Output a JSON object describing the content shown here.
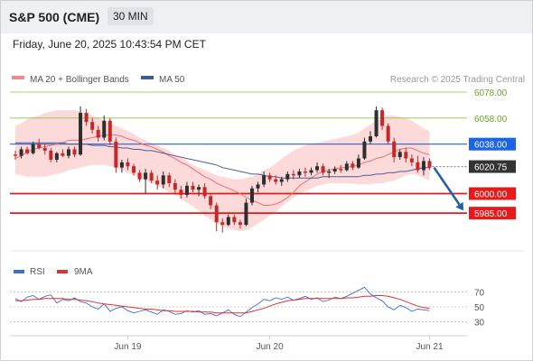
{
  "header": {
    "title": "S&P 500 (CME)",
    "interval": "30 MIN",
    "datetime": "Friday, June 20, 2025 10:43:54 PM CET"
  },
  "legend": {
    "ma20_bb": "MA 20 + Bollinger Bands",
    "ma50": "MA 50",
    "credit": "Research © 2025 Trading Central",
    "rsi": "RSI",
    "ma9": "9MA"
  },
  "colors": {
    "up": "#2e2e2e",
    "down": "#c62828",
    "bollinger_fill": "#fbd3d3",
    "ma20": "#e57373",
    "ma50": "#4a5f9a",
    "green_level": "#8bc34a",
    "blue_level": "#1a64e8",
    "red_level": "#e8191a",
    "price_tag": "#333333",
    "arrow": "#1f5ea8",
    "rsi_line": "#3a6fd0",
    "rsi_ma": "#e23030"
  },
  "chart_data": [
    {
      "type": "candlestick",
      "title": "S&P 500 (CME) 30 MIN",
      "x_axis_labels": [
        "Jun 19",
        "Jun 20",
        "Jun 21"
      ],
      "ylim": [
        5965,
        6087
      ],
      "last_price": 6020.75,
      "price_tag": "6020.75",
      "levels": [
        {
          "value": 6078.0,
          "label": "6078.00",
          "style": "green-line"
        },
        {
          "value": 6058.0,
          "label": "6058.00",
          "style": "green-line"
        },
        {
          "value": 6038.0,
          "label": "6038.00",
          "style": "blue-tag"
        },
        {
          "value": 6000.0,
          "label": "6000.00",
          "style": "red-tag"
        },
        {
          "value": 5985.0,
          "label": "5985.00",
          "style": "red-tag"
        }
      ],
      "projection": {
        "from": 6020,
        "to": 5987
      },
      "series": [
        {
          "name": "MA 20",
          "values": [
            6027,
            6029,
            6032,
            6034,
            6035,
            6036,
            6037,
            6038,
            6039,
            6041,
            6041,
            6041,
            6042,
            6043,
            6044,
            6045,
            6045,
            6045,
            6044,
            6042,
            6041,
            6039,
            6037,
            6036,
            6034,
            6032,
            6029,
            6027,
            6024,
            6022,
            6019,
            6016,
            6013,
            6011,
            6008,
            6006,
            6004,
            6002,
            6000,
            5997,
            5995,
            5993,
            5991,
            5991,
            5992,
            5994,
            5997,
            6001,
            6006,
            6009,
            6012,
            6015,
            6017,
            6018,
            6019,
            6020,
            6020,
            6021,
            6022,
            6024,
            6025,
            6027,
            6028,
            6030,
            6032,
            6034,
            6035,
            6035,
            6033,
            6031,
            6030
          ]
        },
        {
          "name": "MA 50",
          "values": [
            6039,
            6039,
            6039,
            6039,
            6039,
            6039,
            6039,
            6039,
            6039,
            6038,
            6038,
            6038,
            6038,
            6037,
            6037,
            6037,
            6036,
            6036,
            6035,
            6035,
            6034,
            6034,
            6033,
            6033,
            6032,
            6031,
            6030,
            6029,
            6028,
            6027,
            6026,
            6025,
            6024,
            6023,
            6022,
            6020,
            6019,
            6018,
            6017,
            6016,
            6015,
            6015,
            6014,
            6013,
            6013,
            6012,
            6012,
            6012,
            6012,
            6012,
            6012,
            6012,
            6013,
            6013,
            6013,
            6013,
            6013,
            6013,
            6013,
            6014,
            6014,
            6015,
            6015,
            6016,
            6016,
            6017,
            6017,
            6018,
            6019,
            6020,
            6020
          ]
        },
        {
          "name": "Bollinger Upper",
          "values": [
            6052,
            6054,
            6057,
            6059,
            6060,
            6062,
            6063,
            6064,
            6064,
            6064,
            6064,
            6063,
            6061,
            6060,
            6058,
            6056,
            6054,
            6052,
            6050,
            6048,
            6046,
            6043,
            6041,
            6039,
            6037,
            6035,
            6033,
            6030,
            6028,
            6025,
            6022,
            6020,
            6018,
            6016,
            6014,
            6013,
            6012,
            6011,
            6011,
            6012,
            6013,
            6015,
            6018,
            6020,
            6023,
            6027,
            6030,
            6033,
            6035,
            6037,
            6038,
            6039,
            6040,
            6041,
            6042,
            6043,
            6044,
            6045,
            6047,
            6050,
            6053,
            6056,
            6058,
            6060,
            6060,
            6059,
            6058,
            6056,
            6053,
            6050,
            6048
          ]
        },
        {
          "name": "Bollinger Lower",
          "values": [
            6015,
            6014,
            6013,
            6013,
            6013,
            6013,
            6014,
            6015,
            6016,
            6018,
            6019,
            6020,
            6021,
            6022,
            6022,
            6022,
            6021,
            6020,
            6018,
            6016,
            6014,
            6012,
            6010,
            6008,
            6006,
            6004,
            6001,
            5999,
            5996,
            5993,
            5990,
            5987,
            5983,
            5980,
            5977,
            5975,
            5973,
            5972,
            5971,
            5972,
            5974,
            5977,
            5980,
            5983,
            5986,
            5990,
            5994,
            5997,
            6000,
            6002,
            6004,
            6006,
            6007,
            6008,
            6008,
            6008,
            6008,
            6008,
            6007,
            6007,
            6007,
            6008,
            6008,
            6009,
            6010,
            6012,
            6014,
            6015,
            6014,
            6012,
            6010
          ]
        },
        {
          "name": "Candles (OHLC)",
          "values": [
            [
              6030,
              6033,
              6026,
              6029
            ],
            [
              6029,
              6036,
              6027,
              6034
            ],
            [
              6034,
              6036,
              6030,
              6031
            ],
            [
              6031,
              6040,
              6030,
              6038
            ],
            [
              6038,
              6042,
              6034,
              6035
            ],
            [
              6035,
              6038,
              6030,
              6033
            ],
            [
              6033,
              6035,
              6024,
              6026
            ],
            [
              6026,
              6032,
              6024,
              6031
            ],
            [
              6031,
              6034,
              6028,
              6029
            ],
            [
              6029,
              6036,
              6027,
              6034
            ],
            [
              6034,
              6036,
              6028,
              6030
            ],
            [
              6030,
              6067,
              6029,
              6062
            ],
            [
              6062,
              6065,
              6052,
              6055
            ],
            [
              6055,
              6058,
              6046,
              6049
            ],
            [
              6049,
              6052,
              6040,
              6043
            ],
            [
              6043,
              6060,
              6041,
              6056
            ],
            [
              6056,
              6058,
              6037,
              6040
            ],
            [
              6040,
              6043,
              6016,
              6020
            ],
            [
              6020,
              6026,
              6016,
              6024
            ],
            [
              6024,
              6027,
              6018,
              6021
            ],
            [
              6021,
              6023,
              6014,
              6016
            ],
            [
              6016,
              6018,
              6009,
              6011
            ],
            [
              6011,
              6019,
              6000,
              6016
            ],
            [
              6016,
              6018,
              6008,
              6010
            ],
            [
              6010,
              6014,
              6003,
              6007
            ],
            [
              6007,
              6017,
              6004,
              6014
            ],
            [
              6014,
              6016,
              6005,
              6008
            ],
            [
              6008,
              6011,
              6000,
              6003
            ],
            [
              6003,
              6006,
              5996,
              5999
            ],
            [
              5999,
              6009,
              5997,
              6006
            ],
            [
              6006,
              6009,
              6001,
              6003
            ],
            [
              6003,
              6007,
              5998,
              6005
            ],
            [
              6005,
              6008,
              5996,
              5998
            ],
            [
              5998,
              6000,
              5988,
              5991
            ],
            [
              5991,
              5993,
              5971,
              5978
            ],
            [
              5978,
              5981,
              5970,
              5976
            ],
            [
              5976,
              5984,
              5975,
              5982
            ],
            [
              5982,
              5984,
              5976,
              5978
            ],
            [
              5978,
              5980,
              5973,
              5976
            ],
            [
              5976,
              5996,
              5975,
              5993
            ],
            [
              5993,
              6006,
              5991,
              6004
            ],
            [
              6004,
              6009,
              6001,
              6007
            ],
            [
              6007,
              6017,
              6005,
              6014
            ],
            [
              6014,
              6016,
              6009,
              6011
            ],
            [
              6011,
              6014,
              6007,
              6009
            ],
            [
              6009,
              6013,
              6006,
              6011
            ],
            [
              6011,
              6017,
              6009,
              6015
            ],
            [
              6015,
              6018,
              6011,
              6014
            ],
            [
              6014,
              6019,
              6012,
              6017
            ],
            [
              6017,
              6020,
              6013,
              6016
            ],
            [
              6016,
              6020,
              6014,
              6018
            ],
            [
              6018,
              6024,
              6016,
              6021
            ],
            [
              6021,
              6023,
              6014,
              6016
            ],
            [
              6016,
              6019,
              6012,
              6017
            ],
            [
              6017,
              6021,
              6015,
              6019
            ],
            [
              6019,
              6022,
              6016,
              6018
            ],
            [
              6018,
              6025,
              6017,
              6023
            ],
            [
              6023,
              6025,
              6018,
              6020
            ],
            [
              6020,
              6030,
              6019,
              6027
            ],
            [
              6027,
              6043,
              6026,
              6040
            ],
            [
              6040,
              6048,
              6038,
              6044
            ],
            [
              6044,
              6067,
              6043,
              6064
            ],
            [
              6064,
              6066,
              6049,
              6052
            ],
            [
              6052,
              6054,
              6038,
              6040
            ],
            [
              6040,
              6043,
              6024,
              6028
            ],
            [
              6028,
              6034,
              6026,
              6032
            ],
            [
              6032,
              6035,
              6024,
              6027
            ],
            [
              6027,
              6030,
              6021,
              6024
            ],
            [
              6024,
              6029,
              6016,
              6018
            ],
            [
              6018,
              6028,
              6014,
              6025
            ],
            [
              6025,
              6027,
              6018,
              6020
            ]
          ]
        }
      ]
    },
    {
      "type": "line",
      "title": "RSI",
      "y_ticks": [
        "70",
        "50",
        "30"
      ],
      "ylim": [
        20,
        80
      ],
      "series": [
        {
          "name": "RSI",
          "values": [
            61,
            57,
            63,
            65,
            60,
            64,
            66,
            55,
            60,
            58,
            62,
            57,
            55,
            50,
            47,
            54,
            44,
            48,
            50,
            45,
            42,
            44,
            46,
            43,
            40,
            46,
            44,
            40,
            41,
            45,
            43,
            45,
            40,
            41,
            38,
            42,
            46,
            40,
            37,
            43,
            49,
            54,
            60,
            58,
            62,
            60,
            63,
            59,
            61,
            64,
            60,
            62,
            57,
            59,
            63,
            61,
            64,
            68,
            72,
            76,
            67,
            62,
            58,
            50,
            46,
            52,
            49,
            44,
            47,
            46,
            45
          ]
        },
        {
          "name": "9MA",
          "values": [
            58,
            58,
            59,
            60,
            60,
            61,
            61,
            61,
            61,
            60,
            60,
            59,
            58,
            57,
            55,
            54,
            53,
            52,
            51,
            50,
            49,
            48,
            47,
            47,
            46,
            45,
            45,
            44,
            44,
            44,
            44,
            43,
            43,
            43,
            42,
            42,
            42,
            42,
            42,
            42,
            44,
            46,
            48,
            51,
            54,
            56,
            58,
            59,
            60,
            61,
            61,
            61,
            61,
            61,
            61,
            61,
            62,
            62,
            63,
            64,
            64,
            65,
            65,
            64,
            62,
            60,
            57,
            54,
            51,
            49,
            48
          ]
        }
      ]
    }
  ]
}
